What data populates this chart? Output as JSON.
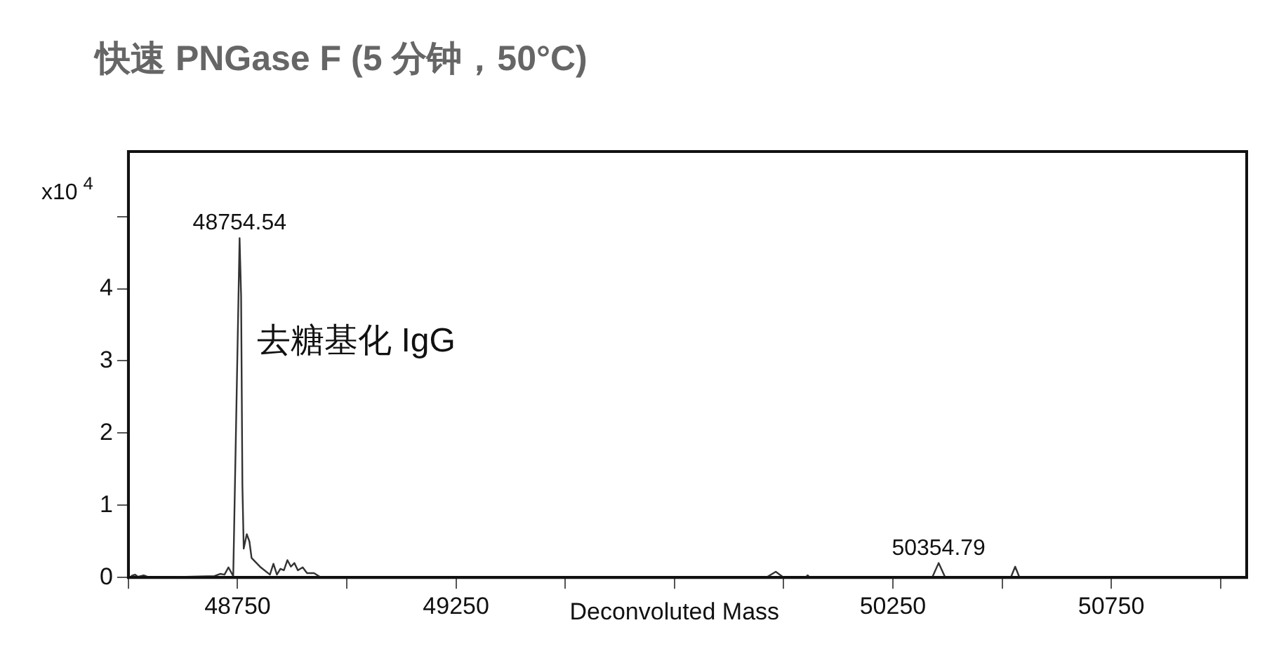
{
  "chart_data": {
    "type": "line",
    "title": "快速 PNGase F (5 分钟，50°C)",
    "xlabel": "Deconvoluted Mass",
    "ylabel": "x10$^{4}$",
    "series": [
      {
        "color": "#333333",
        "x": [
          48506,
          48515,
          48522,
          48535,
          48548,
          48560,
          48697,
          48710,
          48720,
          48729,
          48740,
          48754.54,
          48758,
          48761,
          48764,
          48771,
          48777,
          48782,
          48803,
          48824,
          48832,
          48840,
          48848,
          48856,
          48864,
          48872,
          48880,
          48888,
          48899,
          48909,
          48925,
          48941,
          49960,
          49982,
          50000,
          50050,
          50055,
          50060,
          50340,
          50354.79,
          50370,
          50520,
          50530,
          50540,
          51060
        ],
        "values": [
          0.02,
          0.04,
          0.01,
          0.03,
          0.0,
          0.0,
          0.02,
          0.05,
          0.04,
          0.14,
          0.02,
          4.7,
          3.9,
          1.27,
          0.4,
          0.6,
          0.5,
          0.27,
          0.14,
          0.04,
          0.19,
          0.04,
          0.12,
          0.1,
          0.24,
          0.15,
          0.2,
          0.1,
          0.14,
          0.06,
          0.06,
          0.0,
          0.0,
          0.08,
          0.0,
          0.0,
          0.03,
          0.0,
          0.0,
          0.2,
          0.0,
          0.0,
          0.15,
          0.0,
          0.0
        ]
      }
    ],
    "xlim": [
      48500,
      51060
    ],
    "xticks": [
      {
        "value": 48500,
        "label": null
      },
      {
        "value": 48750,
        "label": "48750"
      },
      {
        "value": 49000,
        "label": null
      },
      {
        "value": 49250,
        "label": "49250"
      },
      {
        "value": 49500,
        "label": null
      },
      {
        "value": 49750,
        "label": null
      },
      {
        "value": 50000,
        "label": null
      },
      {
        "value": 50250,
        "label": "50250"
      },
      {
        "value": 50500,
        "label": null
      },
      {
        "value": 50750,
        "label": "50750"
      },
      {
        "value": 51000,
        "label": null
      }
    ],
    "ylim": [
      0,
      5.9
    ],
    "yticks": [
      0,
      1,
      2,
      3,
      4,
      {
        "value": 5,
        "label": null
      }
    ],
    "grid": false,
    "legend": false,
    "marker": "none",
    "line_style": "solid",
    "annotations": [
      {
        "text": "48754.54",
        "x": 48754.54,
        "y": 4.7
      },
      {
        "text": "50354.79",
        "x": 50354.79,
        "y": 0.2
      },
      "去糖基化 IgG"
    ]
  }
}
